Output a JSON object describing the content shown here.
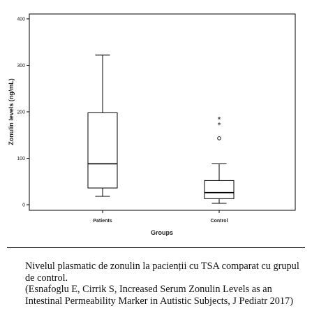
{
  "chart_data": {
    "type": "boxplot",
    "xlabel": "Groups",
    "ylabel": "Zonulin levels (ng/mL)",
    "ylim": [
      -12,
      410
    ],
    "yticks": [
      0,
      100,
      200,
      300,
      400
    ],
    "grid": false,
    "categories": [
      "Patients",
      "Control"
    ],
    "boxes": [
      {
        "category": "Patients",
        "min": 18,
        "q1": 36,
        "median": 88,
        "q3": 198,
        "max": 322,
        "outliers": [],
        "extremes": []
      },
      {
        "category": "Control",
        "min": 3,
        "q1": 13,
        "median": 26,
        "q3": 52,
        "max": 88,
        "outliers": [
          143
        ],
        "extremes": [
          185,
          173
        ]
      }
    ]
  },
  "caption": {
    "line1": "Nivelul plasmatic de zonulin la pacienții cu TSA comparat cu grupul de control.",
    "line2": "(Esnafoglu E, Cirrik S, Increased Serum Zonulin Levels as an Intestinal Permeability Marker in Autistic Subjects, J Pediatr 2017)"
  }
}
